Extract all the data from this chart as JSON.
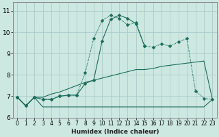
{
  "title": "",
  "xlabel": "Humidex (Indice chaleur)",
  "ylabel": "",
  "bg_color": "#cce8e0",
  "grid_color": "#aacccc",
  "line_color": "#1a6b5a",
  "x_ticks": [
    0,
    1,
    2,
    3,
    4,
    5,
    6,
    7,
    8,
    9,
    10,
    11,
    12,
    13,
    14,
    15,
    16,
    17,
    18,
    19,
    20,
    21,
    22,
    23
  ],
  "y_ticks": [
    6,
    7,
    8,
    9,
    10,
    11
  ],
  "xlim": [
    -0.5,
    23.5
  ],
  "ylim": [
    6.0,
    11.4
  ],
  "series": [
    {
      "x": [
        0,
        1,
        2,
        3,
        4,
        5,
        6,
        7,
        8,
        9,
        10,
        11,
        12,
        13,
        14,
        15,
        16,
        17,
        18,
        19,
        20,
        21,
        22,
        23
      ],
      "y": [
        6.95,
        6.55,
        6.95,
        6.5,
        6.5,
        6.5,
        6.5,
        6.5,
        6.5,
        6.5,
        6.5,
        6.5,
        6.5,
        6.5,
        6.5,
        6.5,
        6.5,
        6.5,
        6.5,
        6.5,
        6.5,
        6.5,
        6.5,
        6.85
      ],
      "style": "-",
      "marker": null
    },
    {
      "x": [
        0,
        1,
        2,
        3,
        4,
        5,
        6,
        7,
        8,
        9,
        10,
        11,
        12,
        13,
        14,
        15,
        16,
        17,
        18,
        19,
        20,
        21,
        22,
        23
      ],
      "y": [
        6.95,
        6.55,
        6.95,
        6.95,
        7.1,
        7.2,
        7.35,
        7.5,
        7.65,
        7.75,
        7.85,
        7.95,
        8.05,
        8.15,
        8.25,
        8.25,
        8.3,
        8.4,
        8.45,
        8.5,
        8.55,
        8.6,
        8.65,
        6.85
      ],
      "style": "-",
      "marker": null
    },
    {
      "x": [
        0,
        1,
        2,
        3,
        4,
        5,
        6,
        7,
        8,
        9,
        10,
        11,
        12,
        13,
        14,
        15,
        16,
        17,
        18,
        19,
        20,
        21,
        22,
        23
      ],
      "y": [
        6.95,
        6.55,
        6.95,
        6.85,
        6.85,
        7.0,
        7.05,
        7.05,
        8.1,
        9.7,
        10.55,
        10.8,
        10.65,
        10.35,
        10.45,
        9.35,
        9.3,
        9.45,
        9.35,
        9.55,
        9.7,
        7.25,
        6.9,
        6.85
      ],
      "style": "dotted",
      "marker": "D",
      "markersize": 2.5
    },
    {
      "x": [
        0,
        1,
        2,
        3,
        4,
        5,
        6,
        7,
        8,
        9,
        10,
        11,
        12,
        13,
        14,
        15,
        16,
        17,
        18,
        19,
        20,
        21,
        22,
        23
      ],
      "y": [
        6.95,
        6.55,
        6.95,
        6.85,
        6.85,
        7.0,
        7.05,
        7.05,
        7.6,
        7.75,
        9.6,
        10.6,
        10.8,
        10.65,
        10.4,
        9.35,
        null,
        null,
        null,
        null,
        null,
        null,
        null,
        null
      ],
      "style": "-",
      "marker": "D",
      "markersize": 2.5
    }
  ]
}
